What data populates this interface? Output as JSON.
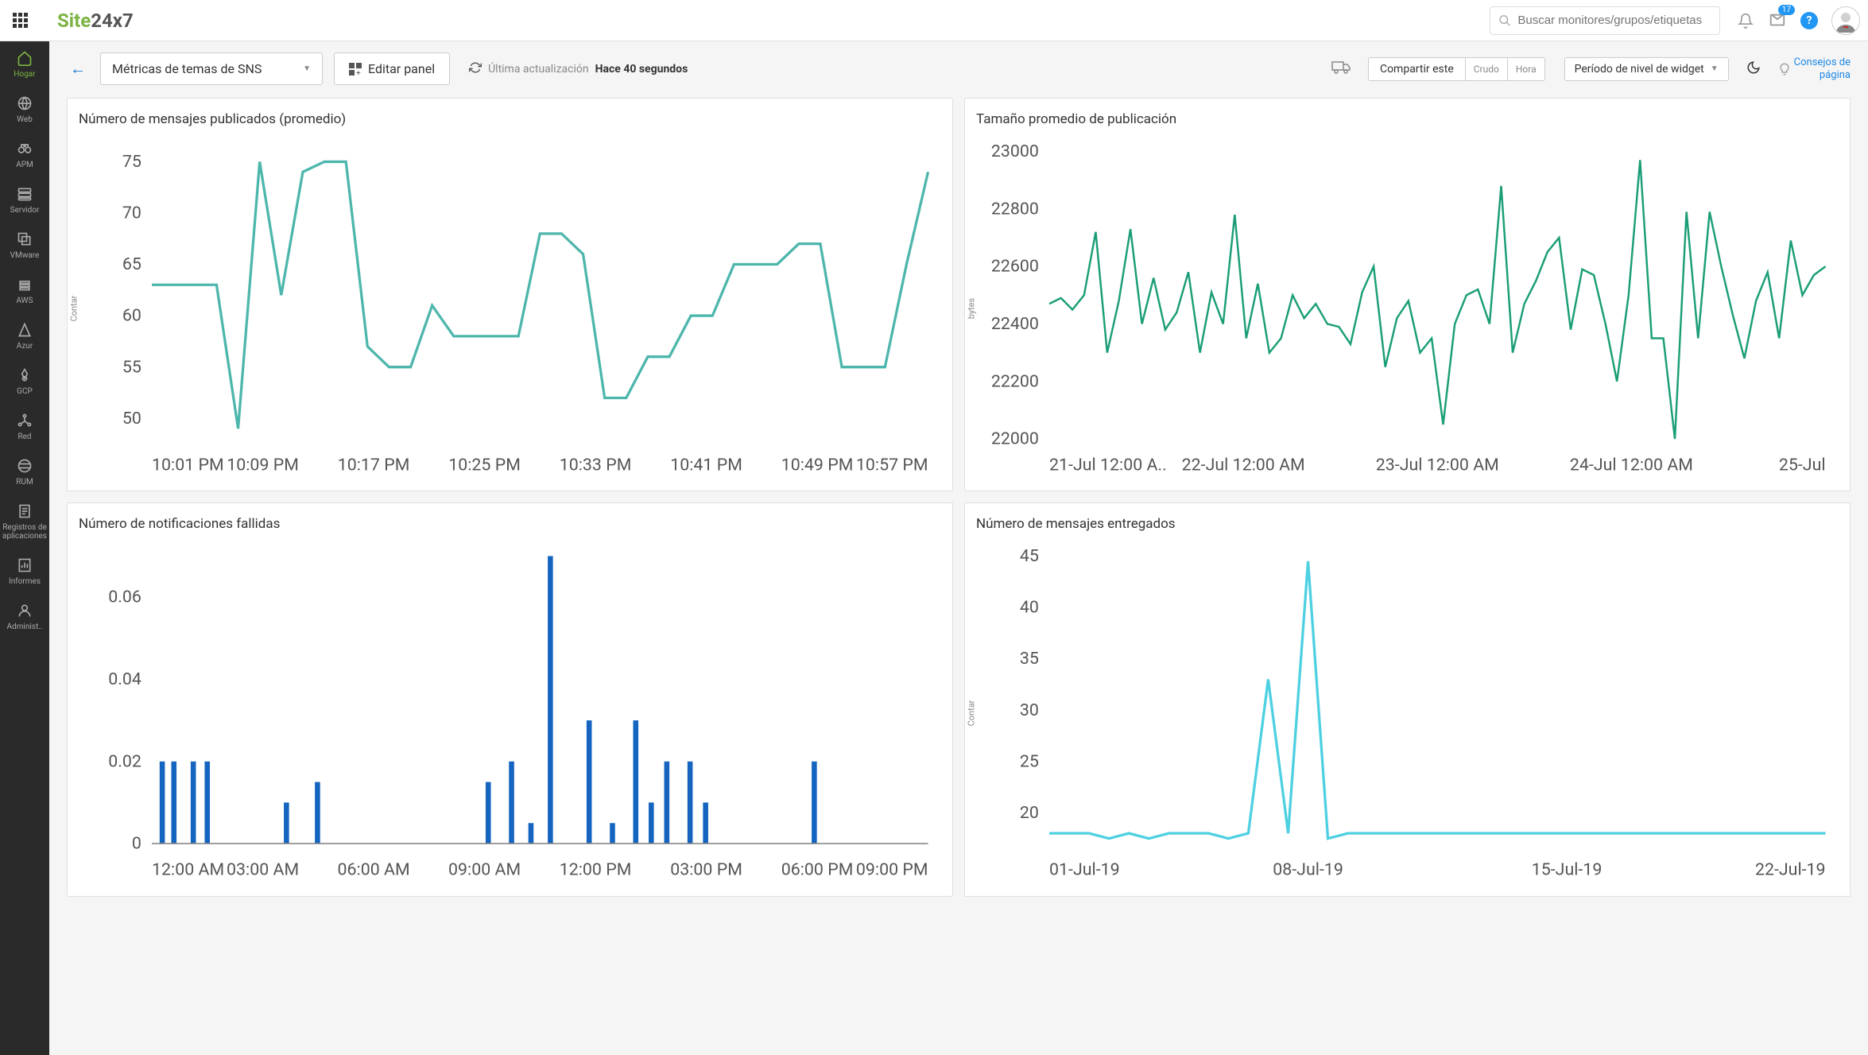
{
  "logo": {
    "part1": "Site",
    "part2": "24x7"
  },
  "search": {
    "placeholder": "Buscar monitores/grupos/etiquetas"
  },
  "notifications": {
    "badge": "17"
  },
  "sidebar": {
    "items": [
      {
        "label": "Hogar",
        "icon": "home"
      },
      {
        "label": "Web",
        "icon": "globe"
      },
      {
        "label": "APM",
        "icon": "binoculars"
      },
      {
        "label": "Servidor",
        "icon": "server"
      },
      {
        "label": "VMware",
        "icon": "layers"
      },
      {
        "label": "AWS",
        "icon": "aws"
      },
      {
        "label": "Azur",
        "icon": "azure"
      },
      {
        "label": "GCP",
        "icon": "gcp"
      },
      {
        "label": "Red",
        "icon": "network"
      },
      {
        "label": "RUM",
        "icon": "world"
      },
      {
        "label": "Registros de aplicaciones",
        "icon": "logs"
      },
      {
        "label": "Informes",
        "icon": "reports"
      },
      {
        "label": "Administ..",
        "icon": "admin"
      }
    ]
  },
  "toolbar": {
    "dropdown_label": "Métricas de temas de SNS",
    "edit_panel": "Editar panel",
    "update_label": "Última actualización",
    "update_time": "Hace 40 segundos",
    "share": "Compartir este",
    "raw": "Crudo",
    "time": "Hora",
    "period": "Período de nivel de widget",
    "tips": "Consejos de",
    "tips2": "página"
  },
  "charts": [
    {
      "title": "Número de mensajes publicados (promedio)",
      "type": "line",
      "ylabel": "Contar",
      "line_color": "#4db6ac",
      "line_width": 2,
      "background_color": "#ffffff",
      "ylim": [
        48,
        76
      ],
      "ytick_step": 5,
      "yticks": [
        50,
        55,
        60,
        65,
        70,
        75
      ],
      "xticks": [
        "10:01 PM",
        "10:09 PM",
        "10:17 PM",
        "10:25 PM",
        "10:33 PM",
        "10:41 PM",
        "10:49 PM",
        "10:57 PM"
      ],
      "values": [
        63,
        63,
        63,
        63,
        49,
        75,
        62,
        74,
        75,
        75,
        57,
        55,
        55,
        61,
        58,
        58,
        58,
        58,
        68,
        68,
        66,
        52,
        52,
        56,
        56,
        60,
        60,
        65,
        65,
        65,
        67,
        67,
        55,
        55,
        55,
        65,
        74
      ]
    },
    {
      "title": "Tamaño promedio de publicación",
      "type": "line",
      "ylabel": "bytes",
      "line_color": "#1b9e77",
      "line_width": 1.5,
      "background_color": "#ffffff",
      "ylim": [
        22000,
        23000
      ],
      "ytick_step": 200,
      "yticks": [
        22000,
        22200,
        22400,
        22600,
        22800,
        23000
      ],
      "xticks": [
        "21-Jul 12:00 A..",
        "22-Jul 12:00 AM",
        "23-Jul 12:00 AM",
        "24-Jul 12:00 AM",
        "25-Jul"
      ],
      "values": [
        22470,
        22490,
        22450,
        22500,
        22720,
        22300,
        22480,
        22730,
        22400,
        22560,
        22380,
        22440,
        22580,
        22300,
        22510,
        22400,
        22780,
        22350,
        22540,
        22300,
        22350,
        22500,
        22420,
        22470,
        22400,
        22390,
        22330,
        22510,
        22600,
        22250,
        22420,
        22480,
        22300,
        22350,
        22050,
        22400,
        22500,
        22520,
        22400,
        22880,
        22300,
        22470,
        22550,
        22650,
        22700,
        22380,
        22590,
        22570,
        22400,
        22200,
        22500,
        22970,
        22350,
        22350,
        22000,
        22790,
        22350,
        22790,
        22600,
        22430,
        22280,
        22480,
        22580,
        22350,
        22690,
        22500,
        22570,
        22600
      ]
    },
    {
      "title": "Número de notificaciones fallidas",
      "type": "bar",
      "ylabel": "",
      "bar_color": "#1565c0",
      "background_color": "#ffffff",
      "ylim": [
        0,
        0.07
      ],
      "ytick_step": 0.02,
      "yticks": [
        0,
        0.02,
        0.04,
        0.06
      ],
      "xticks": [
        "12:00 AM",
        "03:00 AM",
        "06:00 AM",
        "09:00 AM",
        "12:00 PM",
        "03:00 PM",
        "06:00 PM",
        "09:00 PM"
      ],
      "bars": [
        {
          "x": 0.01,
          "h": 0.02
        },
        {
          "x": 0.025,
          "h": 0.02
        },
        {
          "x": 0.05,
          "h": 0.02
        },
        {
          "x": 0.068,
          "h": 0.02
        },
        {
          "x": 0.17,
          "h": 0.01
        },
        {
          "x": 0.21,
          "h": 0.015
        },
        {
          "x": 0.43,
          "h": 0.015
        },
        {
          "x": 0.46,
          "h": 0.02
        },
        {
          "x": 0.485,
          "h": 0.005
        },
        {
          "x": 0.51,
          "h": 0.07
        },
        {
          "x": 0.56,
          "h": 0.03
        },
        {
          "x": 0.59,
          "h": 0.005
        },
        {
          "x": 0.62,
          "h": 0.03
        },
        {
          "x": 0.64,
          "h": 0.01
        },
        {
          "x": 0.66,
          "h": 0.02
        },
        {
          "x": 0.69,
          "h": 0.02
        },
        {
          "x": 0.71,
          "h": 0.01
        },
        {
          "x": 0.85,
          "h": 0.02
        }
      ]
    },
    {
      "title": "Número de mensajes entregados",
      "type": "line",
      "ylabel": "Contar",
      "line_color": "#4dd0e1",
      "line_width": 2,
      "background_color": "#ffffff",
      "ylim": [
        17,
        45
      ],
      "ytick_step": 5,
      "yticks": [
        20,
        25,
        30,
        35,
        40,
        45
      ],
      "xticks": [
        "01-Jul-19",
        "08-Jul-19",
        "15-Jul-19",
        "22-Jul-19"
      ],
      "values": [
        18,
        18,
        18,
        17.5,
        18,
        17.5,
        18,
        18,
        18,
        17.5,
        18,
        33,
        18,
        44.5,
        17.5,
        18,
        18,
        18,
        18,
        18,
        18,
        18,
        18,
        18,
        18,
        18,
        18,
        18,
        18,
        18,
        18,
        18,
        18,
        18,
        18,
        18,
        18,
        18,
        18,
        18
      ]
    }
  ]
}
